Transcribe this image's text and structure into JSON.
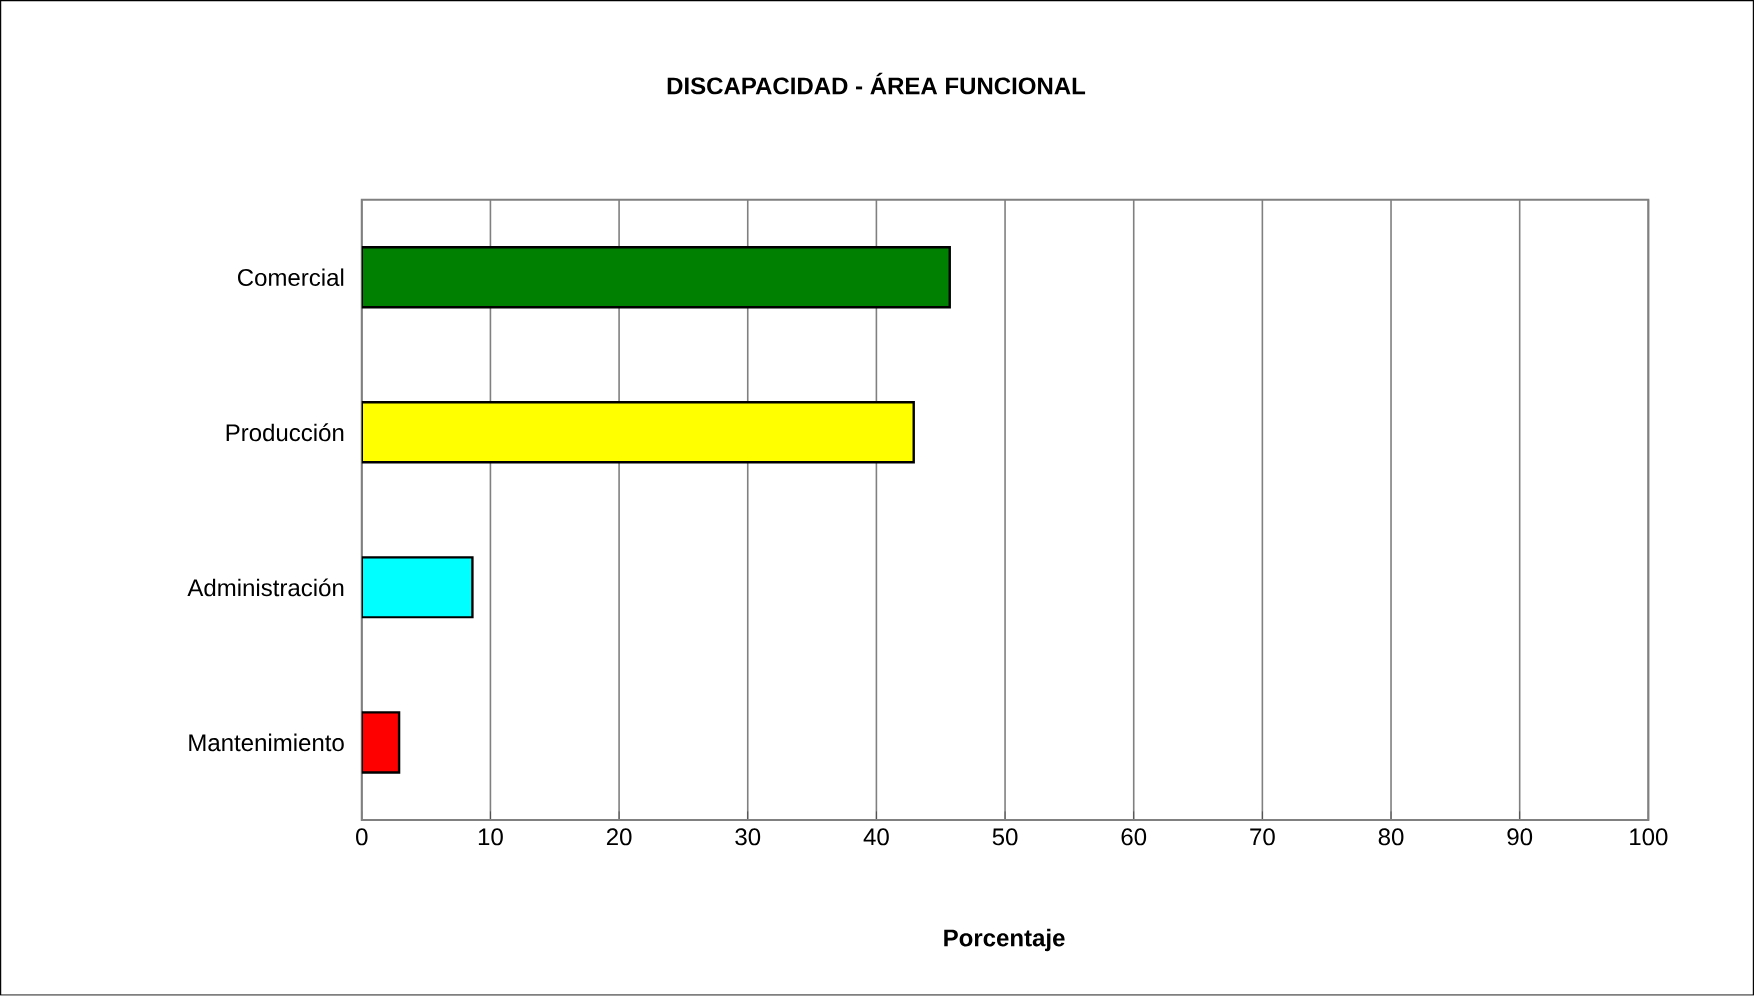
{
  "chart_data": {
    "type": "bar",
    "orientation": "horizontal",
    "title": "DISCAPACIDAD - ÁREA FUNCIONAL",
    "xlabel": "Porcentaje",
    "categories": [
      "Comercial",
      "Producción",
      "Administración",
      "Mantenimiento"
    ],
    "values": [
      45.7,
      42.9,
      8.6,
      2.9
    ],
    "colors": [
      "#008000",
      "#ffff00",
      "#00ffff",
      "#ff0000"
    ],
    "xlim": [
      0,
      100
    ],
    "xticks": [
      0,
      10,
      20,
      30,
      40,
      50,
      60,
      70,
      80,
      90,
      100
    ],
    "grid": "x"
  }
}
